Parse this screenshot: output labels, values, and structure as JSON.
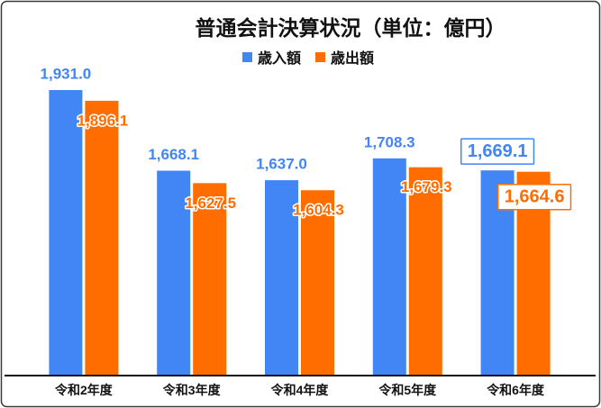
{
  "chart_data": {
    "type": "bar",
    "title": "普通会計決算状況（単位：億円）",
    "categories": [
      "令和2年度",
      "令和3年度",
      "令和4年度",
      "令和5年度",
      "令和6年度"
    ],
    "series": [
      {
        "name": "歳入額",
        "values": [
          1931.0,
          1668.1,
          1637.0,
          1708.3,
          1669.1
        ],
        "color": "#4285f4"
      },
      {
        "name": "歳出額",
        "values": [
          1896.1,
          1627.5,
          1604.3,
          1679.3,
          1664.6
        ],
        "color": "#ff6d01"
      }
    ],
    "ylim": [
      1000,
      2000
    ],
    "grid": false,
    "legend": "top-center",
    "data_labels": true,
    "highlight_index": 4
  }
}
